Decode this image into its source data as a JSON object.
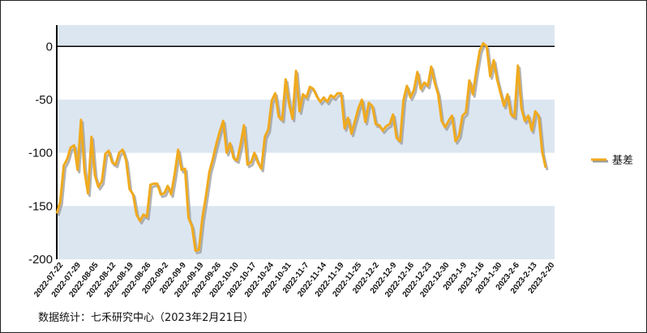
{
  "chart_data": {
    "type": "line",
    "title": "",
    "xlabel": "",
    "ylabel": "",
    "ylim": [
      -200,
      20
    ],
    "yticks": [
      0,
      -50,
      -100,
      -150,
      -200
    ],
    "grid": "alternating horizontal bands",
    "legend_position": "right",
    "colors": {
      "series": "#F0AA1E",
      "shadow": "#9A9A9A",
      "band": "#DCE6F1",
      "zero_line": "#000000"
    },
    "x_tick_labels": [
      "2022-07-22",
      "2022-07-29",
      "2022-08-05",
      "2022-08-12",
      "2022-08-19",
      "2022-08-26",
      "2022-09-2",
      "2022-09-9",
      "2022-09-19",
      "2022-09-26",
      "2022-10-10",
      "2022-10-17",
      "2022-10-24",
      "2022-10-31",
      "2022-11-7",
      "2022-11-14",
      "2022-11-19",
      "2022-11-25",
      "2022-12-2",
      "2022-12-9",
      "2022-12-16",
      "2022-12-23",
      "2022-12-30",
      "2023-1-9",
      "2023-1-16",
      "2023-1-30",
      "2023-2-6",
      "2023-2-13",
      "2023-2-20"
    ],
    "series": [
      {
        "name": "基差",
        "values": [
          -157,
          -146,
          -112,
          -106,
          -95,
          -93,
          -116,
          -69,
          -117,
          -138,
          -85,
          -121,
          -132,
          -127,
          -101,
          -98,
          -109,
          -111,
          -100,
          -97,
          -107,
          -134,
          -139,
          -158,
          -164,
          -158,
          -160,
          -130,
          -129,
          -129,
          -139,
          -138,
          -131,
          -139,
          -120,
          -97,
          -116,
          -115,
          -161,
          -169,
          -192,
          -191,
          -161,
          -141,
          -118,
          -106,
          -92,
          -80,
          -70,
          -100,
          -91,
          -105,
          -107,
          -92,
          -74,
          -111,
          -109,
          -100,
          -109,
          -115,
          -85,
          -78,
          -51,
          -44,
          -66,
          -69,
          -31,
          -54,
          -68,
          -23,
          -61,
          -45,
          -48,
          -38,
          -40,
          -47,
          -52,
          -48,
          -52,
          -46,
          -48,
          -44,
          -44,
          -77,
          -67,
          -82,
          -70,
          -58,
          -50,
          -71,
          -53,
          -56,
          -73,
          -74,
          -79,
          -75,
          -73,
          -64,
          -86,
          -89,
          -50,
          -37,
          -48,
          -41,
          -24,
          -40,
          -34,
          -37,
          -19,
          -34,
          -45,
          -70,
          -76,
          -70,
          -65,
          -89,
          -84,
          -65,
          -62,
          -32,
          -45,
          -23,
          -4,
          3,
          0,
          -28,
          -13,
          -31,
          -44,
          -56,
          -45,
          -64,
          -66,
          -18,
          -58,
          -70,
          -65,
          -79,
          -61,
          -65,
          -99,
          -114
        ]
      }
    ]
  },
  "source_text": "数据统计：七禾研究中心（2023年2月21日）"
}
